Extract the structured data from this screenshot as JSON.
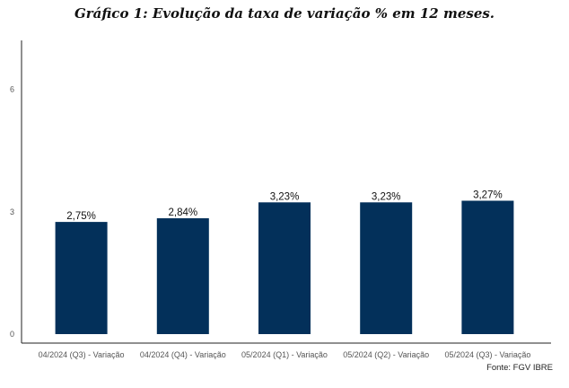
{
  "chart_data": {
    "type": "bar",
    "title": "Gráfico 1: Evolução da taxa de variação % em 12 meses.",
    "categories": [
      "04/2024 (Q3) - Variação",
      "04/2024 (Q4) - Variação",
      "05/2024 (Q1) - Variação",
      "05/2024 (Q2) - Variação",
      "05/2024 (Q3) - Variação"
    ],
    "values": [
      2.75,
      2.84,
      3.23,
      3.23,
      3.27
    ],
    "data_labels": [
      "2,75%",
      "2,84%",
      "3,23%",
      "3,23%",
      "3,27%"
    ],
    "ylim": [
      0,
      7.2
    ],
    "yticks": [
      0,
      3,
      6
    ],
    "ytick_labels": [
      "0",
      "3",
      "6"
    ],
    "xlabel": "",
    "ylabel": "",
    "grid": false,
    "bar_color": "#03305a",
    "source": "Fonte: FGV IBRE"
  }
}
